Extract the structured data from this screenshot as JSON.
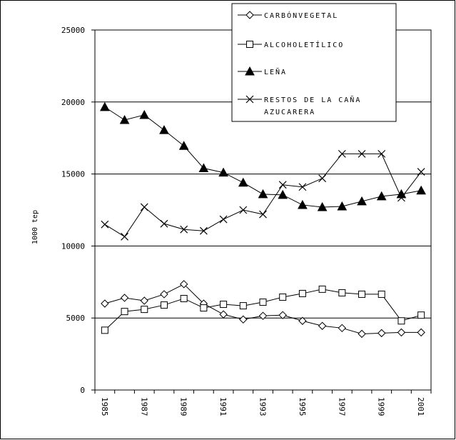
{
  "chart_data": {
    "type": "line",
    "ylabel": "1000 tep",
    "ylim": [
      0,
      25000
    ],
    "yticks": [
      0,
      5000,
      10000,
      15000,
      20000,
      25000
    ],
    "ytick_labels": [
      "0",
      "5000",
      "10000",
      "15000",
      "20000",
      "25000"
    ],
    "x": [
      1985,
      1986,
      1987,
      1988,
      1989,
      1990,
      1991,
      1992,
      1993,
      1994,
      1995,
      1996,
      1997,
      1998,
      1999,
      2000,
      2001
    ],
    "xtick_labels": [
      "1985",
      "1987",
      "1989",
      "1991",
      "1993",
      "1995",
      "1997",
      "1999",
      "2001"
    ],
    "xtick_values": [
      1985,
      1987,
      1989,
      1991,
      1993,
      1995,
      1997,
      1999,
      2001
    ],
    "grid": "horizontal",
    "legend_position": "top-right",
    "series": [
      {
        "name": "CARBÓNVEGETAL",
        "marker": "diamond",
        "values": [
          6000,
          6400,
          6200,
          6650,
          7350,
          6000,
          5250,
          4900,
          5150,
          5200,
          4800,
          4450,
          4300,
          3900,
          3950,
          4000,
          4000
        ]
      },
      {
        "name": "ALCOHOLETÍLICO",
        "marker": "square",
        "values": [
          4150,
          5450,
          5600,
          5900,
          6350,
          5700,
          5950,
          5850,
          6100,
          6450,
          6700,
          7000,
          6750,
          6650,
          6650,
          4800,
          5200
        ]
      },
      {
        "name": "LEÑA",
        "marker": "triangle",
        "values": [
          19650,
          18750,
          19100,
          18050,
          16950,
          15400,
          15100,
          14400,
          13600,
          13550,
          12850,
          12700,
          12750,
          13100,
          13450,
          13600,
          13850
        ]
      },
      {
        "name": "RESTOS DE LA CAÑA AZUCARERA",
        "name_lines": [
          "RESTOS DE LA CAÑA",
          "AZUCARERA"
        ],
        "marker": "x",
        "values": [
          11500,
          10650,
          12700,
          11550,
          11150,
          11050,
          11850,
          12500,
          12200,
          14250,
          14100,
          14700,
          16400,
          16400,
          16400,
          13350,
          15150
        ]
      }
    ]
  }
}
